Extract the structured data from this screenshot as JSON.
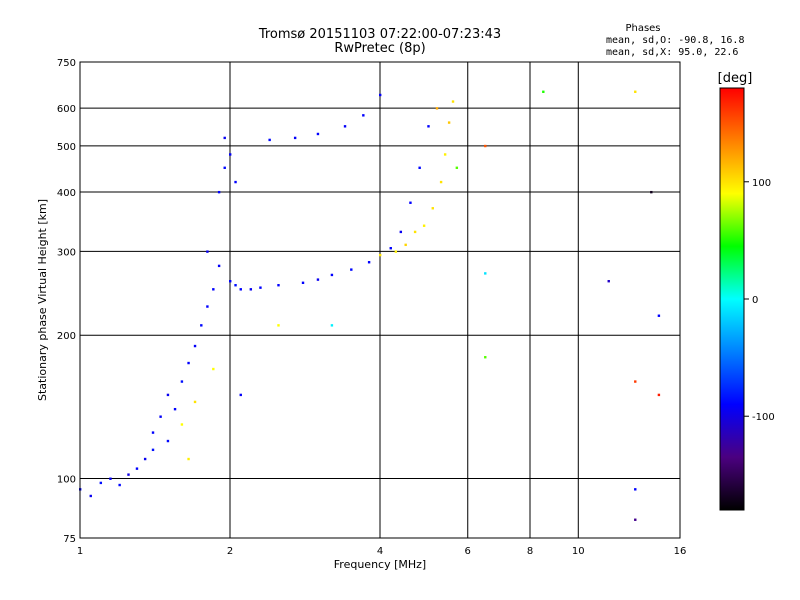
{
  "chart_data": {
    "type": "scatter",
    "title": "Tromsø 20151103 07:22:00-07:23:43",
    "subtitle": "RwPretec (8p)",
    "stats": {
      "heading": "Phases",
      "line1": "mean, sd,O: -90.8, 16.8",
      "line2": "mean, sd,X:  95.0, 22.6"
    },
    "xlabel": "Frequency [MHz]",
    "ylabel": "Stationary phase Virtual Height [km]",
    "xscale": "log",
    "yscale": "log",
    "xlim": [
      1,
      16
    ],
    "ylim": [
      75,
      750
    ],
    "xticks": [
      1,
      2,
      4,
      6,
      8,
      10,
      16
    ],
    "xtick_labels": [
      "1",
      "2",
      "4",
      "6",
      "8",
      "10",
      "16"
    ],
    "yticks": [
      75,
      100,
      200,
      300,
      400,
      500,
      600,
      750
    ],
    "ytick_labels": [
      "75",
      "100",
      "200",
      "300",
      "400",
      "500",
      "600",
      "750"
    ],
    "grid": true,
    "colorbar": {
      "label": "[deg]",
      "min": -180,
      "max": 180,
      "ticks": [
        -100,
        0,
        100
      ],
      "tick_labels": [
        "-100",
        "0",
        "100"
      ],
      "colormap": [
        "#000000",
        "#4b0080",
        "#0000ff",
        "#0080ff",
        "#00ffff",
        "#00ff00",
        "#ffff00",
        "#ff8000",
        "#ff0000"
      ]
    },
    "points": [
      {
        "x": 1.0,
        "y": 95,
        "c": -90
      },
      {
        "x": 1.05,
        "y": 92,
        "c": -95
      },
      {
        "x": 1.1,
        "y": 98,
        "c": -85
      },
      {
        "x": 1.15,
        "y": 100,
        "c": -92
      },
      {
        "x": 1.2,
        "y": 97,
        "c": -88
      },
      {
        "x": 1.25,
        "y": 102,
        "c": -100
      },
      {
        "x": 1.3,
        "y": 105,
        "c": -90
      },
      {
        "x": 1.35,
        "y": 110,
        "c": -95
      },
      {
        "x": 1.4,
        "y": 115,
        "c": -85
      },
      {
        "x": 1.4,
        "y": 125,
        "c": -90
      },
      {
        "x": 1.45,
        "y": 135,
        "c": -92
      },
      {
        "x": 1.5,
        "y": 120,
        "c": -88
      },
      {
        "x": 1.5,
        "y": 150,
        "c": -95
      },
      {
        "x": 1.55,
        "y": 140,
        "c": -90
      },
      {
        "x": 1.6,
        "y": 160,
        "c": -85
      },
      {
        "x": 1.6,
        "y": 130,
        "c": 90
      },
      {
        "x": 1.65,
        "y": 110,
        "c": 95
      },
      {
        "x": 1.65,
        "y": 175,
        "c": -90
      },
      {
        "x": 1.7,
        "y": 190,
        "c": -92
      },
      {
        "x": 1.7,
        "y": 145,
        "c": 100
      },
      {
        "x": 1.75,
        "y": 210,
        "c": -88
      },
      {
        "x": 1.8,
        "y": 230,
        "c": -90
      },
      {
        "x": 1.8,
        "y": 300,
        "c": -95
      },
      {
        "x": 1.85,
        "y": 250,
        "c": -90
      },
      {
        "x": 1.85,
        "y": 170,
        "c": 90
      },
      {
        "x": 1.9,
        "y": 280,
        "c": -92
      },
      {
        "x": 1.9,
        "y": 400,
        "c": -90
      },
      {
        "x": 1.95,
        "y": 450,
        "c": -88
      },
      {
        "x": 1.95,
        "y": 520,
        "c": -95
      },
      {
        "x": 2.0,
        "y": 260,
        "c": -90
      },
      {
        "x": 2.0,
        "y": 480,
        "c": -92
      },
      {
        "x": 2.05,
        "y": 255,
        "c": -85
      },
      {
        "x": 2.05,
        "y": 420,
        "c": -90
      },
      {
        "x": 2.1,
        "y": 250,
        "c": -90
      },
      {
        "x": 2.1,
        "y": 150,
        "c": -92
      },
      {
        "x": 2.2,
        "y": 250,
        "c": -95
      },
      {
        "x": 2.3,
        "y": 252,
        "c": -90
      },
      {
        "x": 2.4,
        "y": 515,
        "c": -88
      },
      {
        "x": 2.5,
        "y": 255,
        "c": -90
      },
      {
        "x": 2.5,
        "y": 210,
        "c": 90
      },
      {
        "x": 2.7,
        "y": 520,
        "c": -92
      },
      {
        "x": 2.8,
        "y": 258,
        "c": -90
      },
      {
        "x": 3.0,
        "y": 262,
        "c": -95
      },
      {
        "x": 3.0,
        "y": 530,
        "c": -90
      },
      {
        "x": 3.2,
        "y": 210,
        "c": -5
      },
      {
        "x": 3.2,
        "y": 268,
        "c": -90
      },
      {
        "x": 3.4,
        "y": 550,
        "c": -92
      },
      {
        "x": 3.5,
        "y": 275,
        "c": -88
      },
      {
        "x": 3.7,
        "y": 580,
        "c": -90
      },
      {
        "x": 3.8,
        "y": 285,
        "c": -90
      },
      {
        "x": 4.0,
        "y": 295,
        "c": 100
      },
      {
        "x": 4.0,
        "y": 640,
        "c": -92
      },
      {
        "x": 4.2,
        "y": 305,
        "c": -90
      },
      {
        "x": 4.3,
        "y": 300,
        "c": 95
      },
      {
        "x": 4.4,
        "y": 330,
        "c": -95
      },
      {
        "x": 4.5,
        "y": 310,
        "c": 105
      },
      {
        "x": 4.6,
        "y": 380,
        "c": -90
      },
      {
        "x": 4.7,
        "y": 330,
        "c": 100
      },
      {
        "x": 4.8,
        "y": 450,
        "c": -88
      },
      {
        "x": 4.9,
        "y": 340,
        "c": 95
      },
      {
        "x": 5.0,
        "y": 550,
        "c": -90
      },
      {
        "x": 5.1,
        "y": 370,
        "c": 100
      },
      {
        "x": 5.2,
        "y": 600,
        "c": 120
      },
      {
        "x": 5.3,
        "y": 420,
        "c": 100
      },
      {
        "x": 5.4,
        "y": 480,
        "c": 95
      },
      {
        "x": 5.5,
        "y": 560,
        "c": 110
      },
      {
        "x": 5.6,
        "y": 620,
        "c": 100
      },
      {
        "x": 5.7,
        "y": 450,
        "c": 60
      },
      {
        "x": 6.5,
        "y": 500,
        "c": 150
      },
      {
        "x": 6.5,
        "y": 180,
        "c": 60
      },
      {
        "x": 6.5,
        "y": 270,
        "c": -10
      },
      {
        "x": 8.5,
        "y": 650,
        "c": 50
      },
      {
        "x": 11.5,
        "y": 260,
        "c": -110
      },
      {
        "x": 13.0,
        "y": 650,
        "c": 100
      },
      {
        "x": 13.0,
        "y": 160,
        "c": 160
      },
      {
        "x": 13.0,
        "y": 95,
        "c": -90
      },
      {
        "x": 13.0,
        "y": 82,
        "c": -130
      },
      {
        "x": 14.0,
        "y": 400,
        "c": -170
      },
      {
        "x": 14.5,
        "y": 220,
        "c": -90
      },
      {
        "x": 14.5,
        "y": 150,
        "c": 170
      }
    ]
  }
}
